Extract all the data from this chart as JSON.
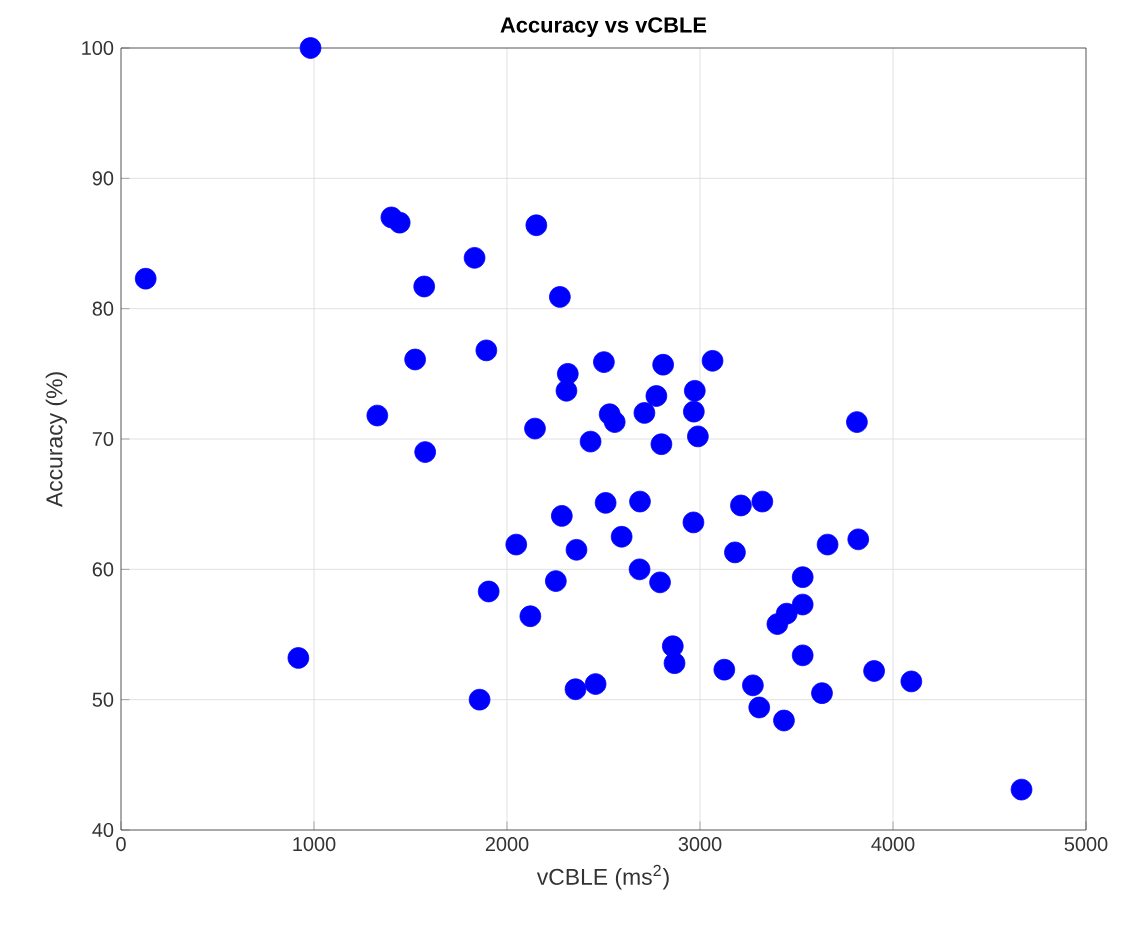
{
  "chart_data": {
    "type": "scatter",
    "title": "Accuracy vs vCBLE",
    "xlabel": "vCBLE (ms$^{2}$)",
    "ylabel": "Accuracy (%)",
    "xlim": [
      0,
      5000
    ],
    "ylim": [
      40,
      100
    ],
    "xticks": [
      0,
      1000,
      2000,
      3000,
      4000,
      5000
    ],
    "yticks": [
      40,
      50,
      60,
      70,
      80,
      90,
      100
    ],
    "grid": true,
    "marker": "circle",
    "color": "#0000ff",
    "x": [
      982,
      128,
      1401,
      1444,
      1571,
      1524,
      1328,
      2152,
      1832,
      2274,
      1893,
      2315,
      2308,
      2502,
      2809,
      3065,
      2774,
      2973,
      2968,
      2712,
      2532,
      2558,
      2989,
      2145,
      2433,
      2800,
      3813,
      1576,
      919,
      2511,
      2689,
      2284,
      2966,
      3212,
      2048,
      2360,
      2594,
      3181,
      2253,
      2687,
      2793,
      1905,
      2121,
      2859,
      2868,
      3126,
      3274,
      2355,
      2459,
      1858,
      3323,
      3661,
      3820,
      3532,
      3532,
      3449,
      3401,
      3532,
      3902,
      4095,
      3307,
      3435,
      3632,
      4666
    ],
    "values": [
      100,
      82.3,
      87.0,
      86.6,
      81.7,
      76.1,
      71.8,
      86.4,
      83.9,
      80.9,
      76.8,
      75.0,
      73.7,
      75.9,
      75.7,
      76.0,
      73.3,
      73.7,
      72.1,
      72.0,
      71.9,
      71.3,
      70.2,
      70.8,
      69.8,
      69.6,
      71.3,
      69.0,
      53.2,
      65.1,
      65.2,
      64.1,
      63.6,
      64.9,
      61.9,
      61.5,
      62.5,
      61.3,
      59.1,
      60.0,
      59.0,
      58.3,
      56.4,
      54.1,
      52.8,
      52.3,
      51.1,
      50.8,
      51.2,
      50.0,
      65.2,
      61.9,
      62.3,
      59.4,
      57.3,
      56.6,
      55.8,
      53.4,
      52.2,
      51.4,
      49.4,
      48.4,
      50.5,
      43.1
    ]
  }
}
